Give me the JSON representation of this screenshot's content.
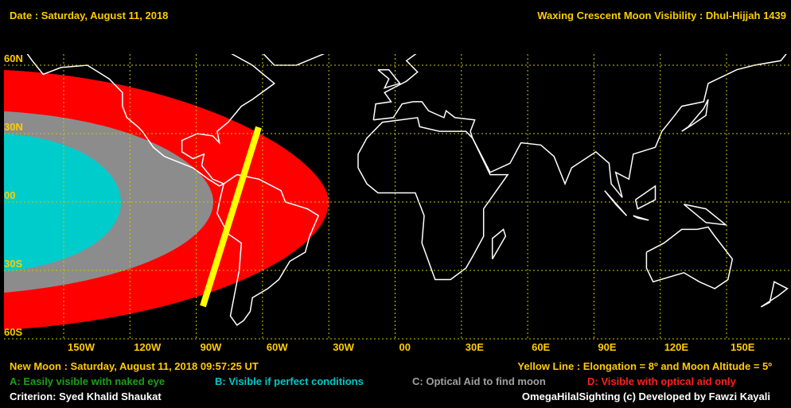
{
  "header": {
    "date": "Date : Saturday, August 11, 2018",
    "title": "Waxing Crescent Moon Visibility : Dhul-Hijjah 1439"
  },
  "map": {
    "lat_labels": [
      "60N",
      "30N",
      "00",
      "30S",
      "60S"
    ],
    "lon_labels": [
      "150W",
      "120W",
      "90W",
      "60W",
      "30W",
      "00",
      "30E",
      "60E",
      "90E",
      "120E",
      "150E"
    ]
  },
  "footer": {
    "new_moon": "New Moon : Saturday, August 11, 2018  09:57:25  UT",
    "yellow_line": "Yellow Line : Elongation = 8º  and Moon Altitude = 5º",
    "legend": [
      "A: Easily visible with naked eye",
      "B: Visible if perfect conditions",
      "C: Optical Aid to find moon",
      "D: Visible with optical aid only"
    ],
    "criterion": "Criterion: Syed Khalid Shaukat",
    "credit": "OmegaHilalSighting  (c)  Developed by Fawzi Kayali"
  }
}
